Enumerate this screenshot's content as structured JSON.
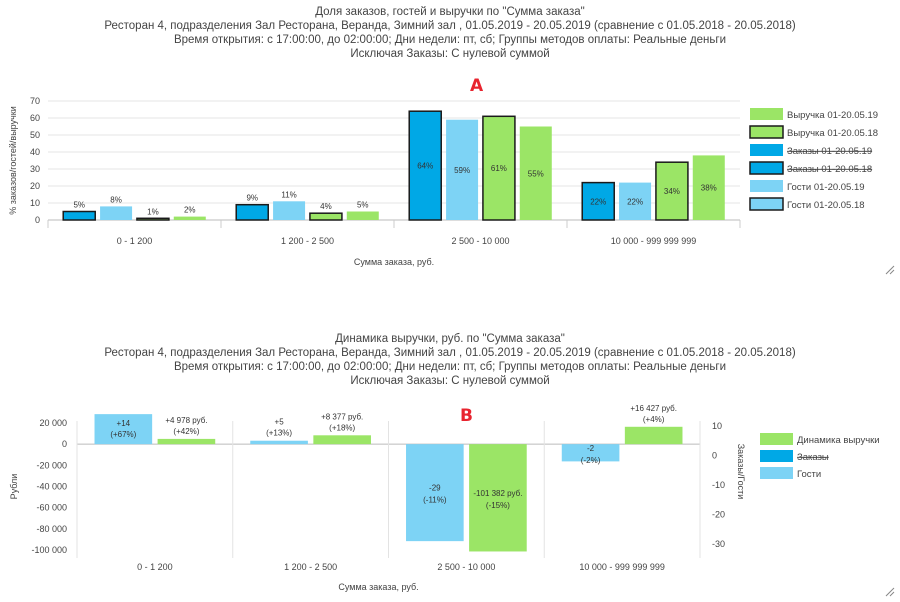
{
  "charts": [
    {
      "chart_data": {
        "type": "bar",
        "title_lines": [
          "Доля заказов, гостей и выручки по \"Сумма заказа\"",
          "Ресторан 4, подразделения Зал Ресторана, Веранда, Зимний зал  , 01.05.2019 - 20.05.2019 (сравнение с 01.05.2018 - 20.05.2018)",
          "Время открытия: с 17:00:00, до 02:00:00; Дни недели: пт,  сб; Группы методов оплаты: Реальные деньги",
          "Исключая Заказы: С нулевой суммой"
        ],
        "marker": "A",
        "xlabel": "Сумма заказа, руб.",
        "ylabel": "% заказов/гостей/выручки",
        "ylim": [
          0,
          70
        ],
        "yticks": [
          "0",
          "10",
          "20",
          "30",
          "40",
          "50",
          "60",
          "70"
        ],
        "categories": [
          "0 -  1 200",
          "1 200  -  2 500",
          "2 500  -  10 000",
          "10 000  -  999 999 999"
        ],
        "series": [
          {
            "name": "Заказы 01-20.05.18",
            "color": "#00a8e6",
            "outlined": true,
            "hidden": true,
            "values": [
              5,
              9,
              64,
              22
            ],
            "labels": [
              "5%",
              "9%",
              "64%",
              "22%"
            ]
          },
          {
            "name": "Гости 01-20.05.19",
            "color": "#7dd3f5",
            "outlined": false,
            "hidden": false,
            "values": [
              8,
              11,
              59,
              22
            ],
            "labels": [
              "8%",
              "11%",
              "59%",
              "22%"
            ]
          },
          {
            "name": "Выручка 01-20.05.18",
            "color": "#9be566",
            "outlined": true,
            "hidden": false,
            "values": [
              1,
              4,
              61,
              34
            ],
            "labels": [
              "1%",
              "4%",
              "61%",
              "34%"
            ]
          },
          {
            "name": "Выручка 01-20.05.19",
            "color": "#9be566",
            "outlined": false,
            "hidden": false,
            "values": [
              2,
              5,
              55,
              38
            ],
            "labels": [
              "2%",
              "5%",
              "55%",
              "38%"
            ]
          }
        ],
        "legend": [
          {
            "name": "Выручка 01-20.05.19",
            "color": "#9be566",
            "outlined": false,
            "struck": false
          },
          {
            "name": "Выручка 01-20.05.18",
            "color": "#9be566",
            "outlined": true,
            "struck": false
          },
          {
            "name": "Заказы 01-20.05.19",
            "color": "#00a8e6",
            "outlined": false,
            "struck": true
          },
          {
            "name": "Заказы 01-20.05.18",
            "color": "#00a8e6",
            "outlined": true,
            "struck": true
          },
          {
            "name": "Гости 01-20.05.19",
            "color": "#7dd3f5",
            "outlined": false,
            "struck": false
          },
          {
            "name": "Гости 01-20.05.18",
            "color": "#7dd3f5",
            "outlined": true,
            "struck": false
          }
        ]
      }
    },
    {
      "chart_data": {
        "type": "bar",
        "title_lines": [
          "Динамика выручки, руб. по \"Сумма заказа\"",
          "Ресторан 4, подразделения Зал Ресторана, Веранда, Зимний зал  , 01.05.2019 - 20.05.2019 (сравнение с 01.05.2018 - 20.05.2018)",
          "Время открытия: с 17:00:00, до 02:00:00; Дни недели: пт,  сб; Группы методов оплаты: Реальные деньги",
          "Исключая Заказы: С нулевой суммой"
        ],
        "marker": "B",
        "xlabel": "Сумма заказа, руб.",
        "ylabel": "Рубли",
        "ylabel_right": "Заказы/Гости",
        "ylim": [
          -100000,
          20000
        ],
        "ylim_right": [
          -32,
          11
        ],
        "yticks": [
          "20 000",
          "0",
          "-20 000",
          "-40 000",
          "-60 000",
          "-80 000",
          "-100 000"
        ],
        "yticks_right": [
          "10",
          "0",
          "-10",
          "-20",
          "-30"
        ],
        "categories": [
          "0 -  1 200",
          "1 200  -  2 500",
          "2 500  -  10 000",
          "10 000  -  999 999 999"
        ],
        "series": [
          {
            "name": "Гости",
            "color": "#7dd3f5",
            "axis": "right",
            "values": [
              14,
              5,
              -29,
              -2
            ],
            "labels": [
              [
                "+14",
                "(+67%)"
              ],
              [
                "+5",
                "(+13%)"
              ],
              [
                "-29",
                "(-11%)"
              ],
              [
                "-2",
                "(-2%)"
              ]
            ]
          },
          {
            "name": "Динамика выручки",
            "color": "#9be566",
            "axis": "left",
            "values": [
              4978,
              8377,
              -101382,
              16427
            ],
            "labels": [
              [
                "+4 978 руб.",
                "(+42%)"
              ],
              [
                "+8 377 руб.",
                "(+18%)"
              ],
              [
                "-101 382 руб.",
                "(-15%)"
              ],
              [
                "+16 427 руб.",
                "(+4%)"
              ]
            ]
          }
        ],
        "legend": [
          {
            "name": "Динамика выручки",
            "color": "#9be566",
            "struck": false
          },
          {
            "name": "Заказы",
            "color": "#00a8e6",
            "struck": true
          },
          {
            "name": "Гости",
            "color": "#7dd3f5",
            "struck": false
          }
        ]
      }
    }
  ]
}
